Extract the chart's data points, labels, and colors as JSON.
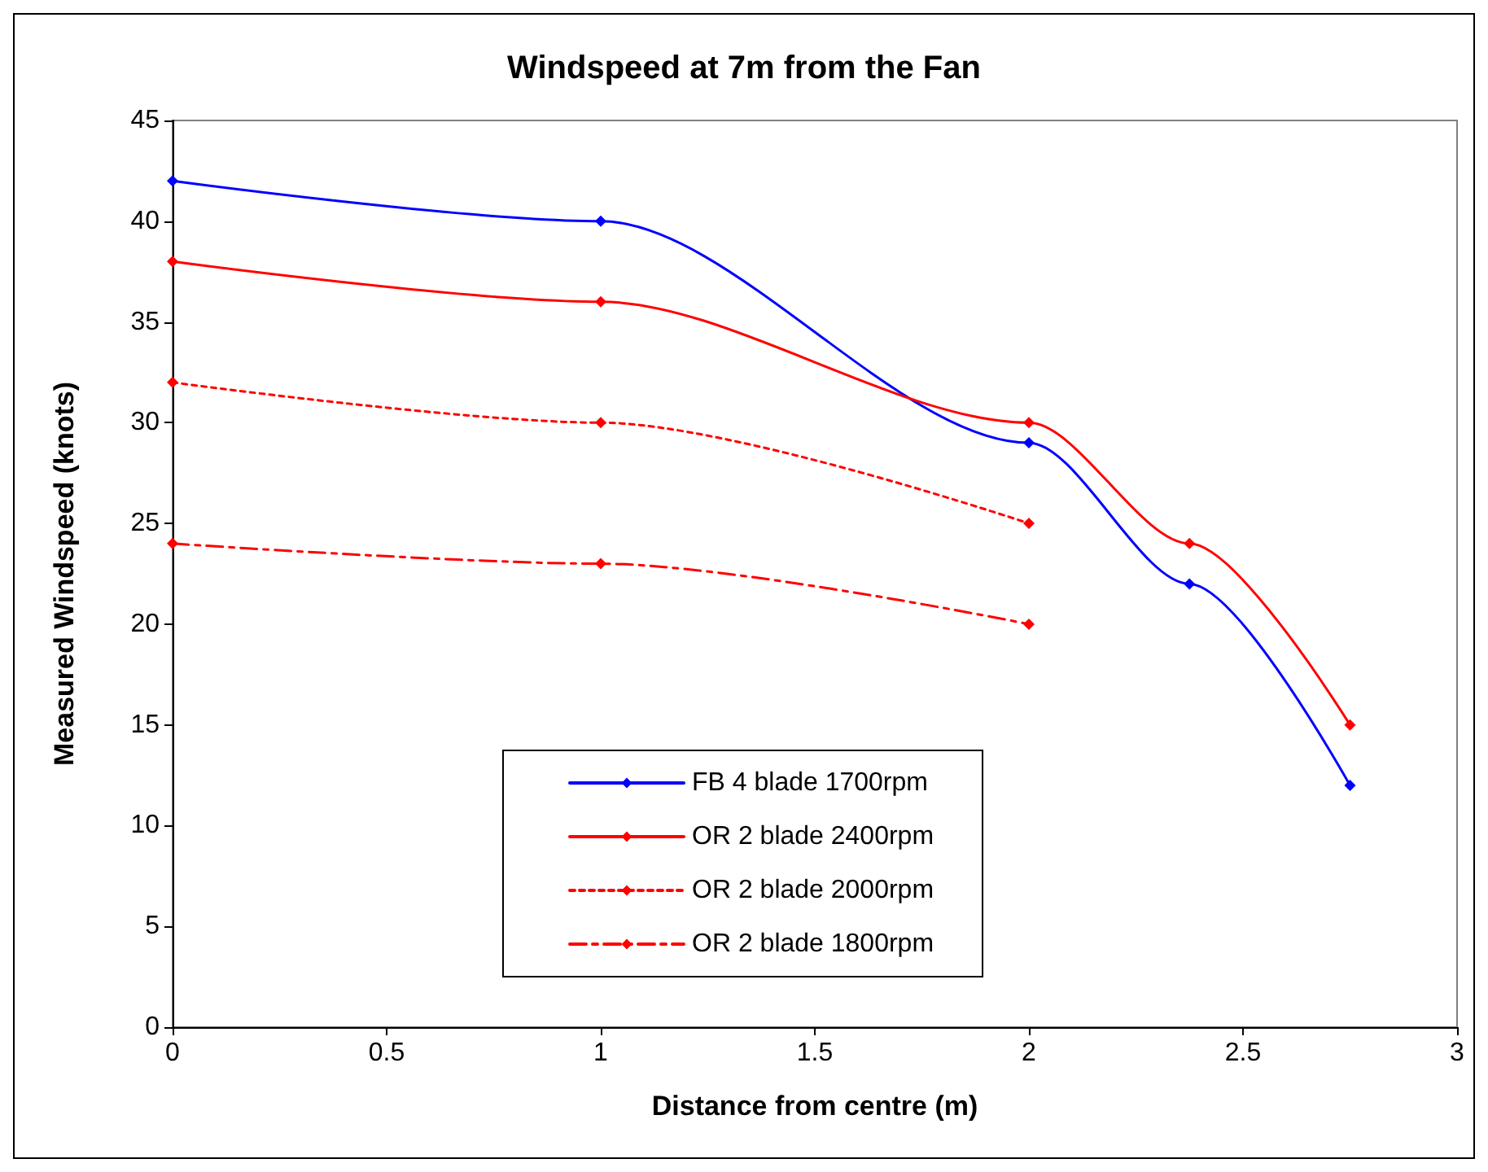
{
  "chart_data": {
    "type": "line",
    "title": "Windspeed at 7m from the Fan",
    "xlabel": "Distance from centre (m)",
    "ylabel": "Measured Windspeed (knots)",
    "xlim": [
      0,
      3
    ],
    "xticks": [
      0,
      0.5,
      1,
      1.5,
      2,
      2.5,
      3
    ],
    "ylim": [
      0,
      45
    ],
    "yticks": [
      0,
      5,
      10,
      15,
      20,
      25,
      30,
      35,
      40,
      45
    ],
    "grid": false,
    "legend": "bottom",
    "marker": "diamond",
    "series": [
      {
        "name": "FB 4 blade 1700rpm",
        "color": "#0000ff",
        "line_style": "solid",
        "x": [
          0,
          1,
          2,
          2.375,
          2.75
        ],
        "values": [
          42,
          40,
          29,
          22,
          12
        ]
      },
      {
        "name": "OR 2 blade 2400rpm",
        "color": "#ff0000",
        "line_style": "solid",
        "x": [
          0,
          1,
          2,
          2.375,
          2.75
        ],
        "values": [
          38,
          36,
          30,
          24,
          15
        ]
      },
      {
        "name": "OR 2 blade 2000rpm",
        "color": "#ff0000",
        "line_style": "dotted",
        "x": [
          0,
          1,
          2
        ],
        "values": [
          32,
          30,
          25
        ]
      },
      {
        "name": "OR 2 blade 1800rpm",
        "color": "#ff0000",
        "line_style": "dashed",
        "x": [
          0,
          1,
          2
        ],
        "values": [
          24,
          23,
          20
        ]
      }
    ]
  }
}
